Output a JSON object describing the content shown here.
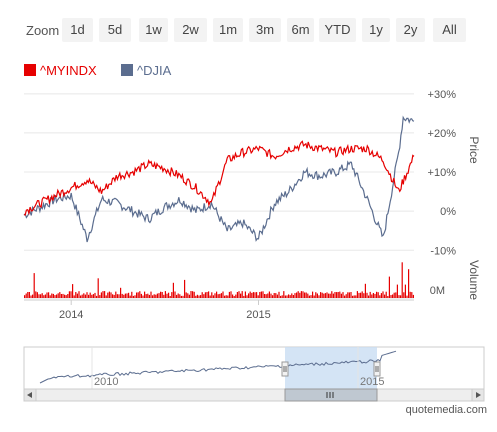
{
  "zoom": {
    "label": "Zoom",
    "buttons": [
      "1d",
      "5d",
      "1w",
      "2w",
      "1m",
      "3m",
      "6m",
      "YTD",
      "1y",
      "2y",
      "All"
    ]
  },
  "legend": [
    {
      "name": "^MYINDX",
      "color": "#e60000"
    },
    {
      "name": "^DJIA",
      "color": "#5b6d8f"
    }
  ],
  "footer": {
    "brand": "quotemedia.com"
  },
  "chart_data": [
    {
      "type": "line",
      "title": "",
      "ylabel": "Price",
      "y_unit": "%",
      "ylim": [
        -13,
        32
      ],
      "yticks": [
        "+30%",
        "+20%",
        "+10%",
        "0%",
        "-10%"
      ],
      "ytick_values": [
        30,
        20,
        10,
        0,
        -10
      ],
      "xlim": [
        "2013-10-01",
        "2015-10-31"
      ],
      "xticks": [
        "2014",
        "2015"
      ],
      "grid": true,
      "legend_position": "top-left",
      "series": [
        {
          "name": "^MYINDX",
          "color": "#e60000",
          "x": [
            "2013-10-01",
            "2013-11-01",
            "2013-12-01",
            "2014-01-01",
            "2014-02-01",
            "2014-03-01",
            "2014-04-01",
            "2014-05-01",
            "2014-06-01",
            "2014-07-01",
            "2014-08-01",
            "2014-09-01",
            "2014-10-01",
            "2014-11-01",
            "2014-12-01",
            "2015-01-01",
            "2015-02-01",
            "2015-03-01",
            "2015-04-01",
            "2015-05-01",
            "2015-06-01",
            "2015-07-01",
            "2015-08-01",
            "2015-09-01",
            "2015-10-01",
            "2015-10-31"
          ],
          "values": [
            0,
            2,
            4,
            6,
            8,
            5,
            9,
            10,
            12,
            11,
            9,
            6,
            2,
            13,
            15,
            16,
            14,
            16,
            17,
            16,
            15,
            16,
            16,
            13,
            5,
            14
          ]
        },
        {
          "name": "^DJIA",
          "color": "#5b6d8f",
          "x": [
            "2013-10-01",
            "2013-11-01",
            "2013-12-01",
            "2014-01-01",
            "2014-02-01",
            "2014-03-01",
            "2014-04-01",
            "2014-05-01",
            "2014-06-01",
            "2014-07-01",
            "2014-08-01",
            "2014-09-01",
            "2014-10-01",
            "2014-11-01",
            "2014-12-01",
            "2015-01-01",
            "2015-02-01",
            "2015-03-01",
            "2015-04-01",
            "2015-05-01",
            "2015-06-01",
            "2015-07-01",
            "2015-08-01",
            "2015-09-01",
            "2015-10-01",
            "2015-10-10",
            "2015-10-31"
          ],
          "values": [
            -1,
            1,
            3,
            4,
            -7,
            3,
            2,
            0,
            -2,
            1,
            3,
            0,
            2,
            -5,
            -3,
            -7,
            2,
            5,
            10,
            9,
            10,
            12,
            3,
            -7,
            15,
            24,
            23
          ]
        }
      ]
    },
    {
      "type": "bar",
      "title": "",
      "ylabel": "Volume",
      "yticks": [
        "0M"
      ],
      "series": [
        {
          "name": "^MYINDX",
          "color": "#e60000"
        }
      ],
      "note": "dense daily volume bars"
    },
    {
      "type": "area",
      "title": "",
      "role": "navigator",
      "xticks": [
        "2010",
        "2015"
      ],
      "series": [
        {
          "color": "#5b6d8f"
        }
      ]
    }
  ]
}
